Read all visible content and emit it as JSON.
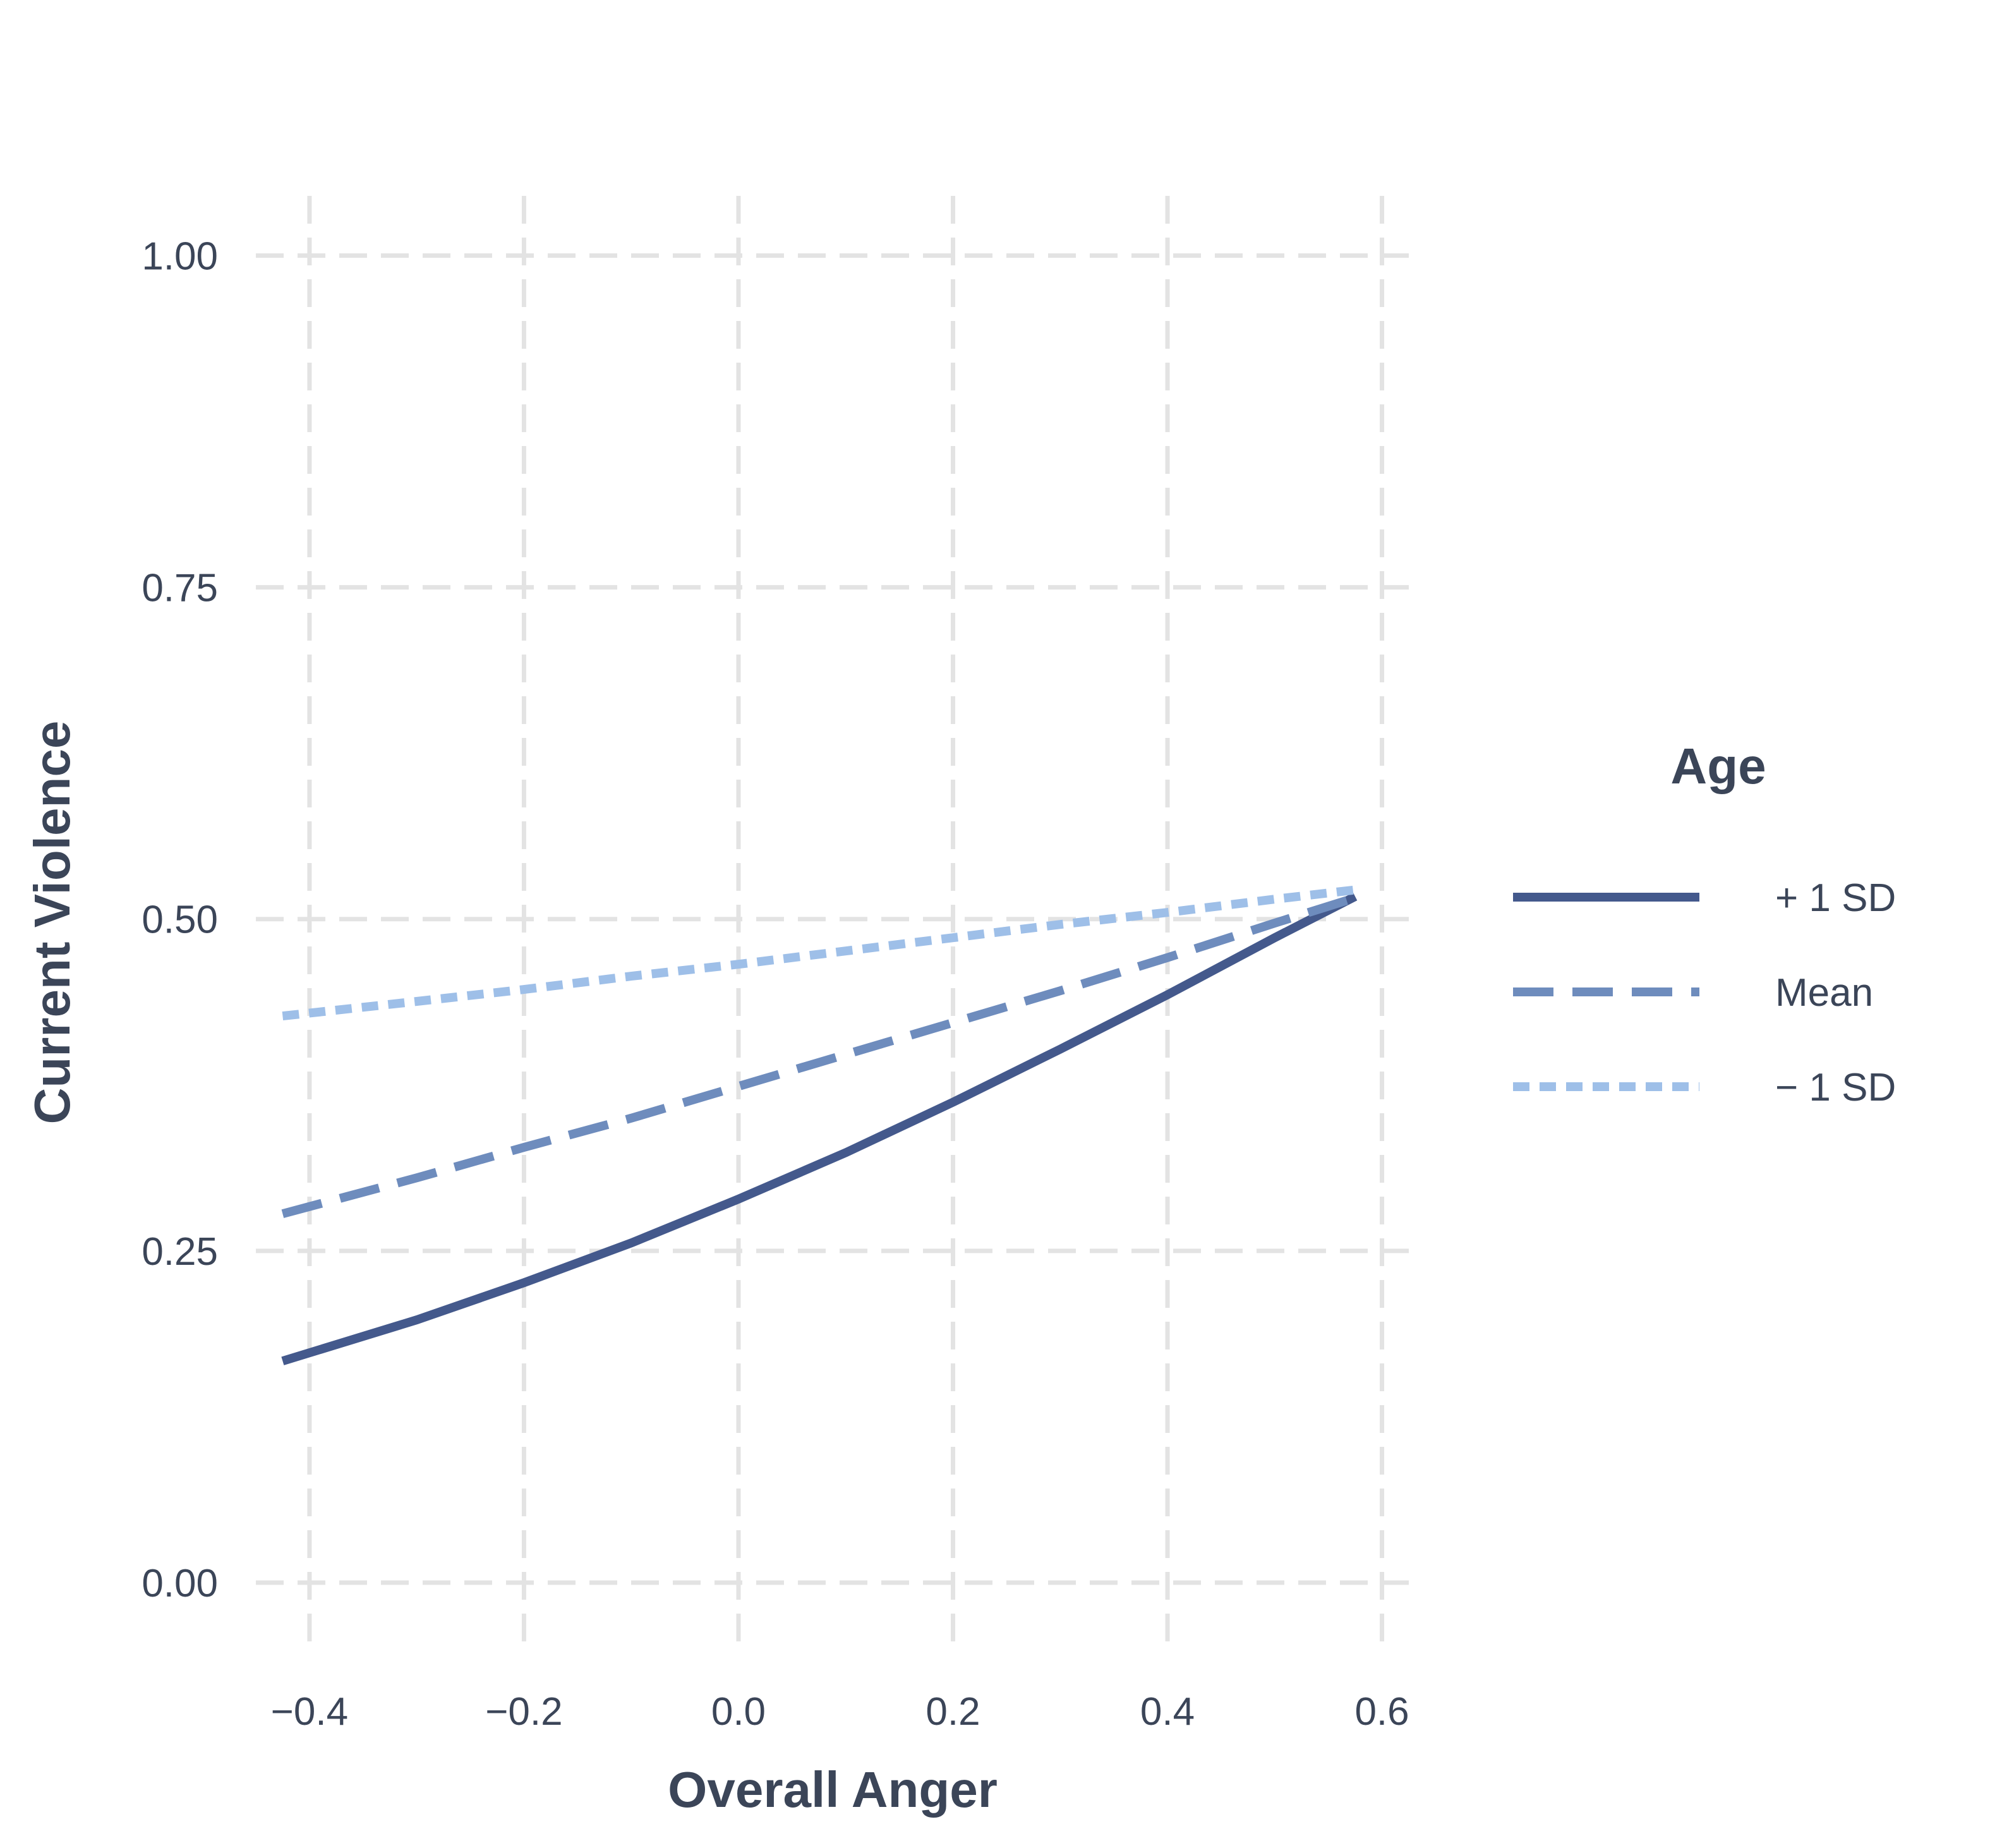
{
  "chart_data": {
    "type": "line",
    "xlabel": "Overall Anger",
    "ylabel": "Current Violence",
    "xlim": [
      -0.45,
      0.625
    ],
    "ylim": [
      -0.05,
      1.045
    ],
    "xticks": [
      -0.4,
      -0.2,
      0.0,
      0.2,
      0.4,
      0.6
    ],
    "xtick_labels": [
      "−0.4",
      "−0.2",
      "0.0",
      "0.2",
      "0.4",
      "0.6"
    ],
    "yticks": [
      0.0,
      0.25,
      0.5,
      0.75,
      1.0
    ],
    "ytick_labels": [
      "0.00",
      "0.25",
      "0.50",
      "0.75",
      "1.00"
    ],
    "grid": true,
    "legend": {
      "title": "Age",
      "position": "right"
    },
    "x": [
      -0.425,
      -0.3,
      -0.2,
      -0.1,
      0.0,
      0.1,
      0.2,
      0.3,
      0.4,
      0.5,
      0.575
    ],
    "series": [
      {
        "name": "+ 1 SD",
        "color": "#44598c",
        "linestyle": "solid",
        "values": [
          0.167,
          0.198,
          0.226,
          0.256,
          0.289,
          0.324,
          0.362,
          0.402,
          0.443,
          0.486,
          0.517
        ]
      },
      {
        "name": "Mean",
        "color": "#6e8cbd",
        "linestyle": "dashed",
        "values": [
          0.278,
          0.305,
          0.328,
          0.35,
          0.374,
          0.398,
          0.422,
          0.446,
          0.471,
          0.497,
          0.516
        ]
      },
      {
        "name": "− 1 SD",
        "color": "#9ebfe8",
        "linestyle": "dotted",
        "values": [
          0.427,
          0.438,
          0.447,
          0.457,
          0.466,
          0.476,
          0.486,
          0.496,
          0.505,
          0.515,
          0.522
        ]
      }
    ]
  }
}
